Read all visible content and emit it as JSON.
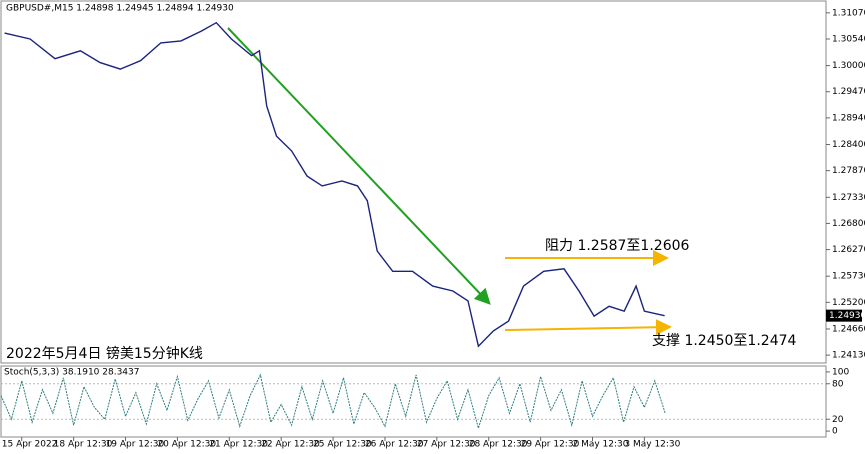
{
  "chart_data": [
    {
      "type": "line",
      "title": "GBPUSD#,M15  1.24898 1.24945 1.24894 1.24930",
      "annotations": [
        "阻力 1.2587至1.2606",
        "支撑 1.2450至1.2474",
        "2022年5月4日 镑美15分钟K线"
      ],
      "current_price": {
        "value": 1.2493,
        "label": "1.24930"
      },
      "xlim": [
        -0.4,
        15.5
      ],
      "ylim": [
        1.2397,
        1.3131
      ],
      "yticks": [
        {
          "value": 1.3107,
          "label": "1.31070"
        },
        {
          "value": 1.3054,
          "label": "1.30540"
        },
        {
          "value": 1.3,
          "label": "1.30000"
        },
        {
          "value": 1.2947,
          "label": "1.29470"
        },
        {
          "value": 1.2894,
          "label": "1.28940"
        },
        {
          "value": 1.284,
          "label": "1.28400"
        },
        {
          "value": 1.2787,
          "label": "1.27870"
        },
        {
          "value": 1.2733,
          "label": "1.27330"
        },
        {
          "value": 1.268,
          "label": "1.26800"
        },
        {
          "value": 1.2627,
          "label": "1.26270"
        },
        {
          "value": 1.2573,
          "label": "1.25730"
        },
        {
          "value": 1.252,
          "label": "1.25200"
        },
        {
          "value": 1.2466,
          "label": "1.24660"
        },
        {
          "value": 1.2413,
          "label": "1.24130"
        }
      ],
      "series": [
        {
          "color": "#1a237e",
          "x": [
            -0.33,
            0.16,
            0.64,
            1.13,
            1.51,
            1.9,
            2.29,
            2.68,
            3.07,
            3.46,
            3.75,
            4.04,
            4.43,
            4.58,
            4.72,
            4.91,
            5.2,
            5.5,
            5.79,
            6.17,
            6.47,
            6.66,
            6.85,
            7.15,
            7.53,
            7.92,
            8.31,
            8.6,
            8.8,
            9.09,
            9.38,
            9.67,
            10.06,
            10.45,
            10.74,
            11.03,
            11.32,
            11.61,
            11.84,
            12.0,
            12.39
          ],
          "values": [
            1.3066,
            1.3054,
            1.3014,
            1.303,
            1.3006,
            1.2993,
            1.301,
            1.3046,
            1.305,
            1.307,
            1.3087,
            1.3054,
            1.302,
            1.303,
            1.2918,
            1.2857,
            1.2827,
            1.2776,
            1.2756,
            1.2766,
            1.2756,
            1.2726,
            1.2624,
            1.2583,
            1.2583,
            1.2553,
            1.2543,
            1.2523,
            1.2431,
            1.2462,
            1.2482,
            1.2553,
            1.2583,
            1.2588,
            1.2543,
            1.2492,
            1.2512,
            1.2502,
            1.2553,
            1.2502,
            1.2493
          ]
        }
      ]
    },
    {
      "type": "line",
      "title": "Stoch(5,3,3) 38.1910 28.3437",
      "xlim": [
        -0.4,
        15.5
      ],
      "ylim": [
        -10,
        110
      ],
      "yticks": [
        100,
        80,
        20,
        0
      ],
      "xticks": [
        {
          "value": 0,
          "label": "15 Apr 2022"
        },
        {
          "value": 1,
          "label": "18 Apr 12:30"
        },
        {
          "value": 2,
          "label": "19 Apr 12:30"
        },
        {
          "value": 3,
          "label": "20 Apr 12:30"
        },
        {
          "value": 4,
          "label": "21 Apr 12:30"
        },
        {
          "value": 5,
          "label": "22 Apr 12:30"
        },
        {
          "value": 6,
          "label": "25 Apr 12:30"
        },
        {
          "value": 7,
          "label": "26 Apr 12:30"
        },
        {
          "value": 8,
          "label": "27 Apr 12:30"
        },
        {
          "value": 9,
          "label": "28 Apr 12:30"
        },
        {
          "value": 10,
          "label": "29 Apr 12:30"
        },
        {
          "value": 11,
          "label": "2 May 12:30"
        },
        {
          "value": 12,
          "label": "3 May 12:30"
        }
      ],
      "series": [
        {
          "color": "#2e7d7d",
          "x": [
            -0.4,
            -0.2,
            0,
            0.2,
            0.4,
            0.6,
            0.8,
            1,
            1.2,
            1.4,
            1.6,
            1.8,
            2,
            2.2,
            2.4,
            2.6,
            2.8,
            3,
            3.2,
            3.4,
            3.6,
            3.8,
            4,
            4.2,
            4.4,
            4.6,
            4.8,
            5,
            5.2,
            5.4,
            5.6,
            5.8,
            6,
            6.2,
            6.4,
            6.6,
            6.8,
            7,
            7.2,
            7.4,
            7.6,
            7.8,
            8,
            8.2,
            8.4,
            8.6,
            8.8,
            9,
            9.2,
            9.4,
            9.6,
            9.8,
            10,
            10.2,
            10.4,
            10.6,
            10.8,
            11,
            11.2,
            11.4,
            11.6,
            11.8,
            12,
            12.2,
            12.4
          ],
          "values": [
            60,
            20,
            85,
            15,
            70,
            30,
            90,
            10,
            75,
            40,
            20,
            88,
            25,
            65,
            12,
            80,
            35,
            92,
            18,
            55,
            85,
            22,
            70,
            8,
            60,
            95,
            15,
            45,
            10,
            75,
            20,
            85,
            30,
            90,
            12,
            65,
            40,
            8,
            80,
            25,
            95,
            15,
            55,
            85,
            20,
            70,
            5,
            60,
            90,
            30,
            80,
            15,
            92,
            35,
            70,
            10,
            85,
            25,
            60,
            90,
            15,
            75,
            40,
            85,
            30
          ]
        }
      ]
    }
  ]
}
